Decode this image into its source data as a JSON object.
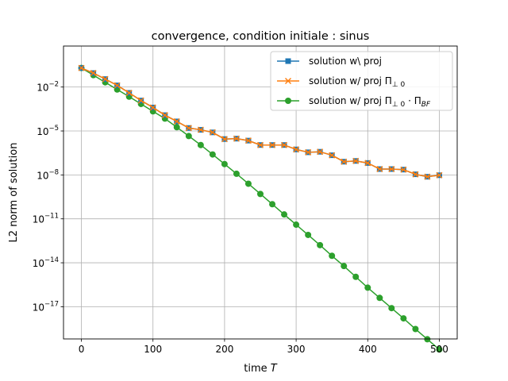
{
  "chart_data": {
    "type": "line",
    "title": "convergence, condition initiale : sinus",
    "xlabel": "time",
    "xlabel_var": "T",
    "ylabel": "L2 norm of solution",
    "yscale": "log",
    "xlim": [
      -25,
      525
    ],
    "ylim_exp": [
      -19.2,
      0.8
    ],
    "xticks": [
      0,
      100,
      200,
      300,
      400,
      500
    ],
    "xtick_labels": [
      "0",
      "100",
      "200",
      "300",
      "400",
      "500"
    ],
    "yticks_exp": [
      -2,
      -5,
      -8,
      -11,
      -14,
      -17
    ],
    "ytick_labels": [
      {
        "base": "10",
        "exp": "−2"
      },
      {
        "base": "10",
        "exp": "−5"
      },
      {
        "base": "10",
        "exp": "−8"
      },
      {
        "base": "10",
        "exp": "−11"
      },
      {
        "base": "10",
        "exp": "−14"
      },
      {
        "base": "10",
        "exp": "−17"
      }
    ],
    "grid": true,
    "legend_position": "upper right",
    "x": [
      0,
      16.7,
      33.3,
      50,
      66.7,
      83.3,
      100,
      116.7,
      133.3,
      150,
      166.7,
      183.3,
      200,
      216.7,
      233.3,
      250,
      266.7,
      283.3,
      300,
      316.7,
      333.3,
      350,
      366.7,
      383.3,
      400,
      416.7,
      433.3,
      450,
      466.7,
      483.3,
      500
    ],
    "series": [
      {
        "name": "solution w\\ proj",
        "name_parts": [
          {
            "t": "solution w\\ proj"
          }
        ],
        "color": "#1f77b4",
        "marker": "square",
        "values": [
          0.2,
          0.09,
          0.035,
          0.013,
          0.004,
          0.0012,
          0.0004,
          0.00012,
          4.5e-05,
          1.6e-05,
          1.2e-05,
          8e-06,
          2.8e-06,
          3e-06,
          2.2e-06,
          1.1e-06,
          1.1e-06,
          1.1e-06,
          5.5e-07,
          3.5e-07,
          3.8e-07,
          2.2e-07,
          8e-08,
          9e-08,
          6.5e-08,
          2.5e-08,
          2.5e-08,
          2.3e-08,
          1.1e-08,
          7.5e-09,
          9.5e-09
        ]
      },
      {
        "name": "solution w/ proj Π⊥0",
        "name_parts": [
          {
            "t": "solution w/ proj Π"
          },
          {
            "t": "⊥ 0",
            "sub": true
          }
        ],
        "color": "#ff7f0e",
        "marker": "x",
        "values": [
          0.2,
          0.09,
          0.035,
          0.013,
          0.004,
          0.0012,
          0.0004,
          0.00012,
          4.5e-05,
          1.6e-05,
          1.2e-05,
          8e-06,
          2.8e-06,
          3e-06,
          2.2e-06,
          1.1e-06,
          1.1e-06,
          1.1e-06,
          5.5e-07,
          3.5e-07,
          3.8e-07,
          2.2e-07,
          8e-08,
          9e-08,
          6.5e-08,
          2.5e-08,
          2.5e-08,
          2.3e-08,
          1.1e-08,
          7.5e-09,
          9.5e-09
        ]
      },
      {
        "name": "solution w/ proj Π⊥0·ΠBF",
        "name_parts": [
          {
            "t": "solution w/ proj Π"
          },
          {
            "t": "⊥ 0",
            "sub": true
          },
          {
            "t": " · Π"
          },
          {
            "t": "BF",
            "sub": true,
            "italic": true
          }
        ],
        "color": "#2ca02c",
        "marker": "circle",
        "values": [
          0.2,
          0.065,
          0.021,
          0.0068,
          0.0022,
          0.0007,
          0.00022,
          7e-05,
          1.8e-05,
          4.5e-06,
          1.1e-06,
          2.5e-07,
          5.5e-08,
          1.2e-08,
          2.5e-09,
          5e-10,
          1e-10,
          2e-11,
          4e-12,
          8e-13,
          1.6e-13,
          3e-14,
          6e-15,
          1.1e-15,
          2e-16,
          4e-17,
          8e-18,
          1.6e-18,
          3e-19,
          6e-20,
          1.2e-20
        ]
      }
    ]
  }
}
